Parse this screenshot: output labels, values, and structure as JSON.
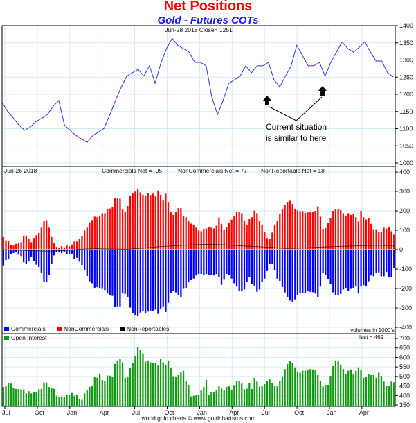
{
  "header": {
    "title": "Net Positions",
    "subtitle": "Gold - Futures COTs"
  },
  "footer": {
    "credit": "world gold charts © www.goldchartsrus.com"
  },
  "colors": {
    "price": "#3333dd",
    "commercials": "#0000ff",
    "noncommercials": "#ff0000",
    "nonreportables": "#000000",
    "open_interest": "#109c10",
    "grid": "#d6ebf5"
  },
  "chart_data": [
    {
      "type": "line",
      "title": "Gold price",
      "header_text": "Jun-28  2018   Close= 1251",
      "ylim": [
        1000,
        1400
      ],
      "yticks": [
        1000,
        1050,
        1100,
        1150,
        1200,
        1250,
        1300,
        1350,
        1400
      ],
      "values": [
        1176,
        1150,
        1131,
        1110,
        1095,
        1105,
        1121,
        1130,
        1141,
        1165,
        1182,
        1111,
        1095,
        1081,
        1070,
        1060,
        1080,
        1090,
        1101,
        1140,
        1182,
        1220,
        1253,
        1263,
        1273,
        1253,
        1283,
        1232,
        1290,
        1333,
        1363,
        1343,
        1333,
        1323,
        1293,
        1293,
        1283,
        1192,
        1141,
        1182,
        1232,
        1242,
        1253,
        1283,
        1263,
        1283,
        1283,
        1293,
        1242,
        1222,
        1253,
        1283,
        1343,
        1313,
        1283,
        1283,
        1293,
        1253,
        1293,
        1323,
        1353,
        1333,
        1323,
        1337,
        1353,
        1323,
        1297,
        1297,
        1263,
        1251
      ],
      "annotation": {
        "line1": "Current situation",
        "line2": "is similar to here"
      }
    },
    {
      "type": "bar",
      "title": "Net positions",
      "date_text": "Jun-26  2018",
      "commercials_net": "Commercials Net = -95",
      "noncommercials_net": "NonCommercials Net = 77",
      "nonreportable_net": "NonReportable Net = 18",
      "ylim": [
        -400,
        400
      ],
      "yticks": [
        -400,
        -300,
        -200,
        -100,
        0,
        100,
        200,
        300,
        400
      ],
      "units_note": "volumes in 1000's",
      "legend": [
        "Commercials",
        "NonCommercials",
        "NonReportables"
      ],
      "series": [
        {
          "name": "NonCommercials",
          "values": [
            65,
            48,
            45,
            24,
            21,
            29,
            32,
            38,
            68,
            71,
            57,
            38,
            60,
            74,
            86,
            113,
            149,
            152,
            113,
            65,
            32,
            14,
            10,
            17,
            12,
            24,
            17,
            26,
            42,
            42,
            57,
            71,
            98,
            113,
            140,
            152,
            170,
            167,
            176,
            188,
            188,
            209,
            212,
            218,
            268,
            263,
            263,
            206,
            194,
            225,
            276,
            289,
            299,
            313,
            295,
            283,
            277,
            292,
            281,
            288,
            274,
            305,
            283,
            253,
            288,
            242,
            194,
            179,
            194,
            214,
            214,
            173,
            167,
            149,
            134,
            129,
            113,
            98,
            95,
            107,
            109,
            117,
            113,
            109,
            123,
            164,
            133,
            104,
            114,
            137,
            155,
            171,
            195,
            196,
            188,
            149,
            126,
            157,
            167,
            202,
            188,
            149,
            129,
            93,
            60,
            57,
            88,
            129,
            146,
            183,
            207,
            229,
            243,
            252,
            235,
            211,
            202,
            198,
            199,
            189,
            192,
            193,
            195,
            200,
            223,
            170,
            107,
            111,
            136,
            161,
            200,
            208,
            211,
            205,
            188,
            174,
            188,
            179,
            183,
            167,
            145,
            200,
            167,
            155,
            161,
            133,
            105,
            105,
            89,
            89,
            113,
            109,
            117,
            95,
            77
          ]
        },
        {
          "name": "Commercials",
          "values": [
            -81,
            -54,
            -48,
            -24,
            -18,
            -14,
            -26,
            -33,
            -65,
            -74,
            -60,
            -36,
            -60,
            -77,
            -89,
            -121,
            -164,
            -167,
            -129,
            -75,
            -30,
            -14,
            -12,
            -18,
            -12,
            -24,
            -21,
            -21,
            -48,
            -42,
            -62,
            -79,
            -107,
            -136,
            -163,
            -173,
            -196,
            -193,
            -200,
            -202,
            -208,
            -226,
            -236,
            -238,
            -295,
            -292,
            -292,
            -226,
            -228,
            -244,
            -298,
            -327,
            -336,
            -339,
            -324,
            -315,
            -327,
            -319,
            -314,
            -315,
            -309,
            -331,
            -303,
            -292,
            -321,
            -274,
            -224,
            -212,
            -220,
            -234,
            -245,
            -202,
            -200,
            -167,
            -157,
            -149,
            -133,
            -125,
            -125,
            -129,
            -125,
            -129,
            -131,
            -133,
            -125,
            -143,
            -181,
            -155,
            -125,
            -131,
            -149,
            -173,
            -190,
            -212,
            -214,
            -205,
            -167,
            -140,
            -175,
            -185,
            -217,
            -205,
            -167,
            -149,
            -110,
            -74,
            -75,
            -105,
            -149,
            -161,
            -193,
            -220,
            -246,
            -262,
            -271,
            -256,
            -233,
            -226,
            -223,
            -224,
            -214,
            -217,
            -219,
            -226,
            -246,
            -190,
            -121,
            -129,
            -152,
            -179,
            -220,
            -233,
            -235,
            -228,
            -205,
            -198,
            -214,
            -202,
            -200,
            -190,
            -226,
            -190,
            -183,
            -188,
            -163,
            -133,
            -137,
            -119,
            -117,
            -137,
            -137,
            -115,
            -143,
            -140,
            -95
          ]
        },
        {
          "name": "NonReportables",
          "values_sampled": [
            0,
            -3,
            -6,
            -8,
            -5,
            2,
            5,
            3,
            2,
            8,
            15,
            20,
            24,
            27,
            25,
            20,
            16,
            12,
            6,
            8,
            12,
            15,
            18,
            20,
            22,
            18
          ]
        }
      ]
    },
    {
      "type": "bar",
      "title": "Open Interest",
      "legend": [
        "Open Interest"
      ],
      "last_text": "last = 469",
      "ylim": [
        350,
        700
      ],
      "yticks": [
        350,
        400,
        450,
        500,
        550,
        600,
        650,
        700
      ],
      "values": [
        444,
        452,
        465,
        462,
        438,
        434,
        434,
        432,
        432,
        411,
        422,
        411,
        418,
        416,
        432,
        434,
        468,
        468,
        444,
        438,
        435,
        398,
        391,
        395,
        391,
        405,
        404,
        413,
        398,
        404,
        383,
        377,
        411,
        428,
        446,
        450,
        499,
        493,
        511,
        481,
        477,
        505,
        504,
        499,
        566,
        581,
        594,
        574,
        493,
        496,
        545,
        572,
        609,
        654,
        638,
        621,
        578,
        584,
        574,
        572,
        572,
        557,
        594,
        574,
        562,
        582,
        545,
        501,
        496,
        507,
        521,
        530,
        477,
        456,
        395,
        398,
        401,
        401,
        426,
        444,
        481,
        401,
        416,
        416,
        426,
        448,
        436,
        426,
        445,
        448,
        429,
        455,
        474,
        474,
        462,
        432,
        436,
        465,
        434,
        493,
        473,
        446,
        452,
        459,
        474,
        484,
        465,
        450,
        450,
        478,
        501,
        539,
        566,
        582,
        570,
        548,
        526,
        520,
        530,
        530,
        534,
        539,
        537,
        534,
        507,
        474,
        448,
        456,
        456,
        503,
        554,
        584,
        584,
        562,
        539,
        511,
        530,
        537,
        510,
        530,
        548,
        534,
        493,
        499,
        511,
        507,
        507,
        493,
        520,
        503,
        473,
        452,
        448,
        473,
        469
      ]
    }
  ],
  "x_axis": {
    "labels": [
      "Jul",
      "Oct",
      "Jan",
      "Apr",
      "Jul",
      "Oct",
      "Jan",
      "Apr",
      "Jul",
      "Oct",
      "Jan",
      "Apr"
    ]
  }
}
